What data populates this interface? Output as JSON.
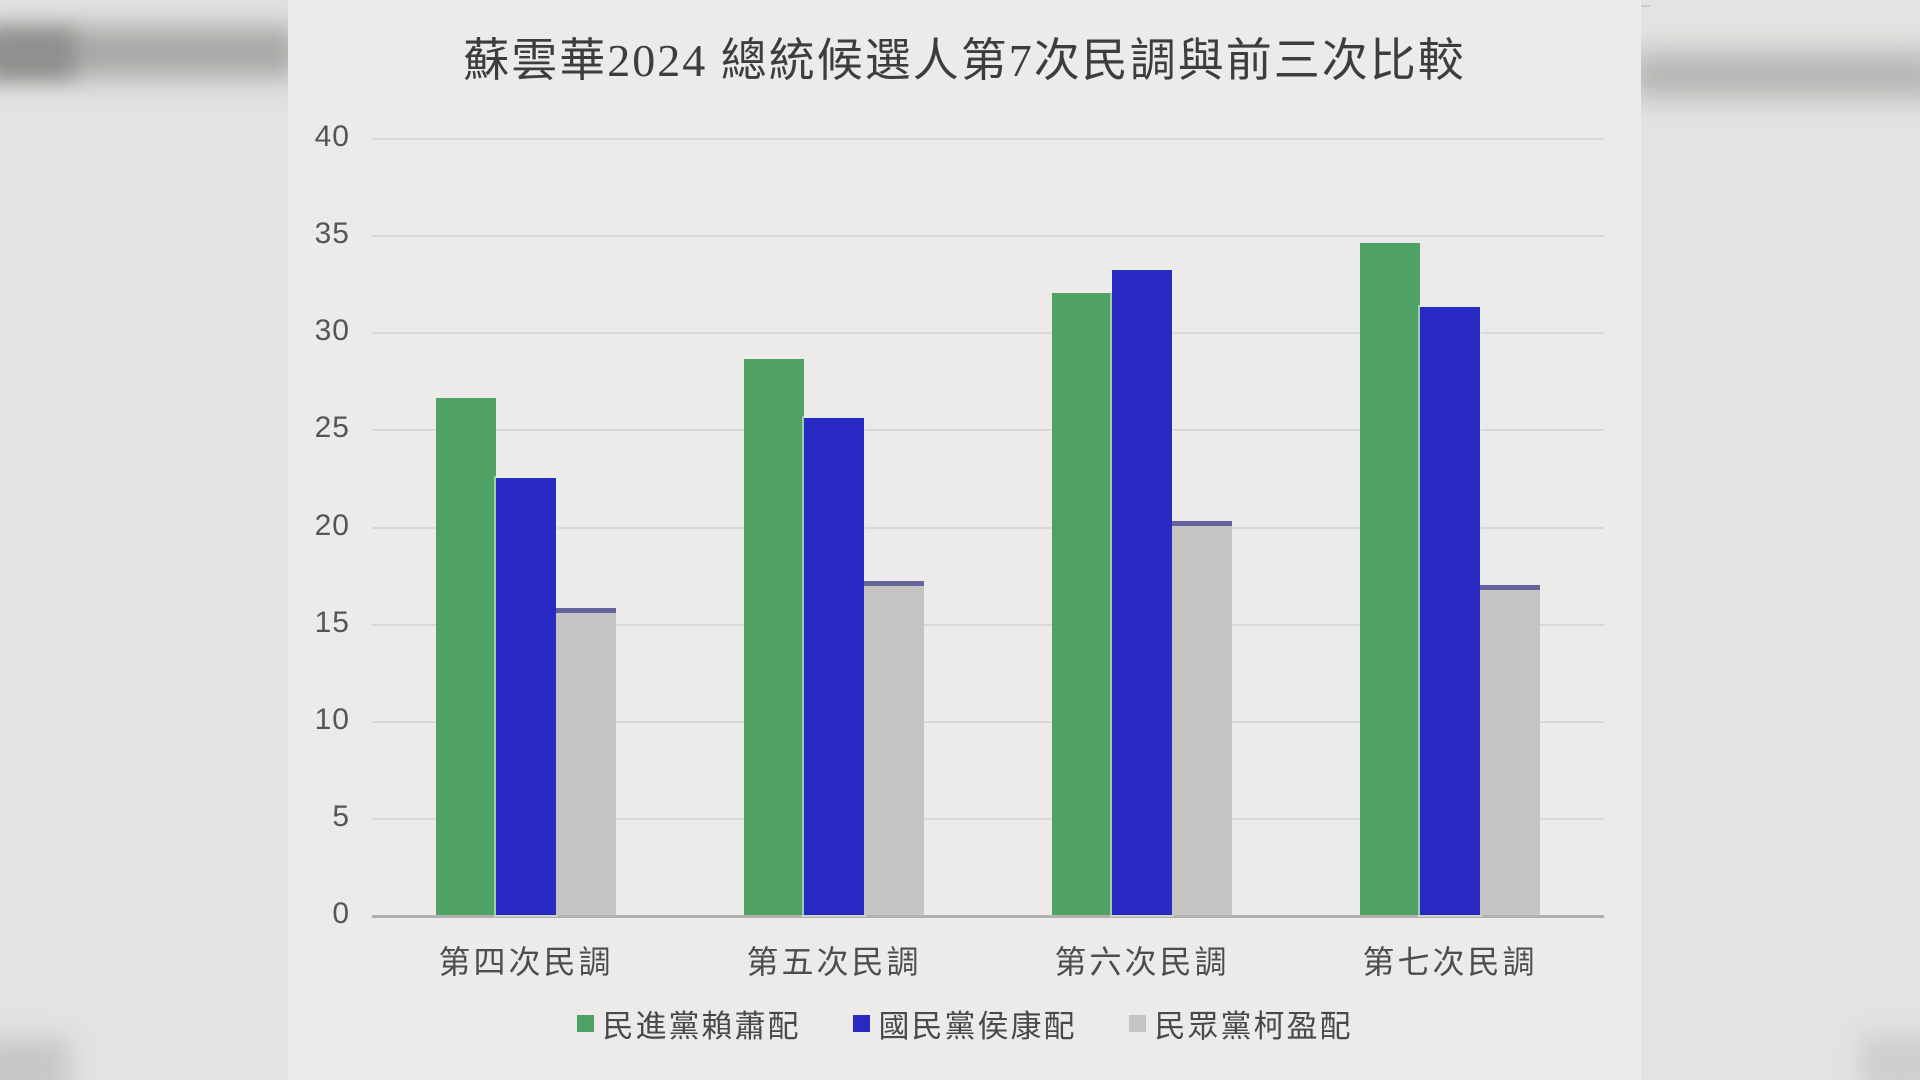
{
  "chart_data": {
    "type": "bar",
    "title": "蘇雲華2024 總統候選人第7次民調與前三次比較",
    "categories": [
      "第四次民調",
      "第五次民調",
      "第六次民調",
      "第七次民調"
    ],
    "series": [
      {
        "name": "民進黨賴蕭配",
        "color": "#4FA263",
        "values": [
          26.6,
          28.6,
          32.0,
          34.6
        ]
      },
      {
        "name": "國民黨侯康配",
        "color": "#2929C4",
        "values": [
          22.5,
          25.6,
          33.2,
          31.3
        ]
      },
      {
        "name": "民眾黨柯盈配",
        "color": "#C5C4C3",
        "values": [
          15.8,
          17.2,
          20.3,
          17.0
        ]
      }
    ],
    "y_ticks": [
      0,
      5,
      10,
      15,
      20,
      25,
      30,
      35,
      40
    ],
    "ylim": [
      0,
      40
    ],
    "xlabel": "",
    "ylabel": "",
    "grid": "horizontal",
    "legend_position": "bottom"
  }
}
